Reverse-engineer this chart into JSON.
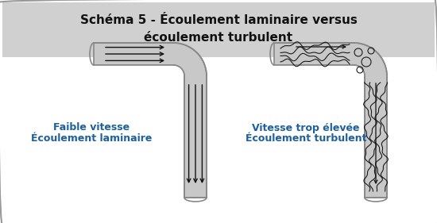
{
  "title_line1": "Schéma 5 - Écoulement laminaire versus",
  "title_line2": "écoulement turbulent",
  "title_fontsize": 11,
  "label_left_line1": "Faible vitesse",
  "label_left_line2": "Écoulement laminaire",
  "label_right_line1": "Vitesse trop élevée",
  "label_right_line2": "Écoulement turbulent",
  "label_color": "#1a5fa8",
  "label_fontsize": 9,
  "bg_color": "#ffffff",
  "header_bg": "#d0d0d0",
  "border_color": "#999999",
  "pipe_fill": "#c8c8c8",
  "pipe_edge": "#888888",
  "pipe_lw": 1.2,
  "flow_color": "#111111",
  "fig_bg": "#ffffff"
}
